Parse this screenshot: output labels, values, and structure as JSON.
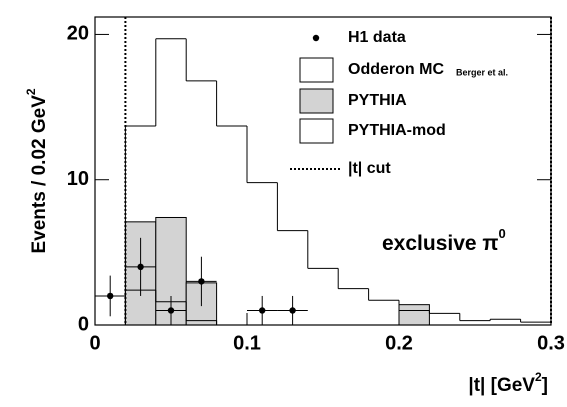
{
  "chart_data": {
    "type": "histogram",
    "ylabel": {
      "text": "Events / 0.02 GeV",
      "sup": "2"
    },
    "xlabel": {
      "text": "|t| [GeV",
      "sup": "2",
      "end": "]"
    },
    "annotation": {
      "text": "exclusive π",
      "sup": "0"
    },
    "xlim": [
      0,
      0.3
    ],
    "ylim": [
      0,
      21.2
    ],
    "xticks": [
      0,
      0.1,
      0.2,
      0.3
    ],
    "yticks": [
      0,
      10,
      20
    ],
    "bins": [
      0.02,
      0.04,
      0.06,
      0.08,
      0.1,
      0.12,
      0.14,
      0.16,
      0.18,
      0.2,
      0.22,
      0.24,
      0.26,
      0.28,
      0.3
    ],
    "series": [
      {
        "name": "Odderon MC",
        "name_note": "Berger et al.",
        "color": "#000000",
        "fill": "none",
        "values": [
          13.7,
          19.7,
          16.8,
          13.7,
          9.8,
          6.5,
          3.9,
          2.5,
          1.7,
          1.0,
          0.8,
          0.3,
          0.4,
          0.2
        ]
      },
      {
        "name": "PYTHIA",
        "color": "#000000",
        "fill": "#d3d3d3",
        "values": [
          7.1,
          7.4,
          2.9,
          0,
          0,
          0,
          0,
          0,
          0,
          1.4,
          0,
          0,
          0,
          0
        ]
      },
      {
        "name": "PYTHIA-mod",
        "color": "#000000",
        "fill": "none",
        "values": [
          2.4,
          1.6,
          0.3,
          0,
          0,
          0,
          0,
          0,
          0,
          0,
          0,
          0,
          0,
          0
        ]
      }
    ],
    "points": {
      "name": "H1 data",
      "color": "#000000",
      "x": [
        0.01,
        0.03,
        0.05,
        0.07,
        0.11,
        0.13
      ],
      "y": [
        2,
        4,
        1,
        3,
        1,
        1
      ],
      "yerr": [
        1.4,
        2,
        1,
        1.7,
        1,
        1
      ],
      "xerr": [
        0.01,
        0.01,
        0.01,
        0.01,
        0.01,
        0.01
      ]
    },
    "cut": {
      "name": "|t| cut",
      "values": [
        0.02,
        0.3
      ]
    }
  }
}
